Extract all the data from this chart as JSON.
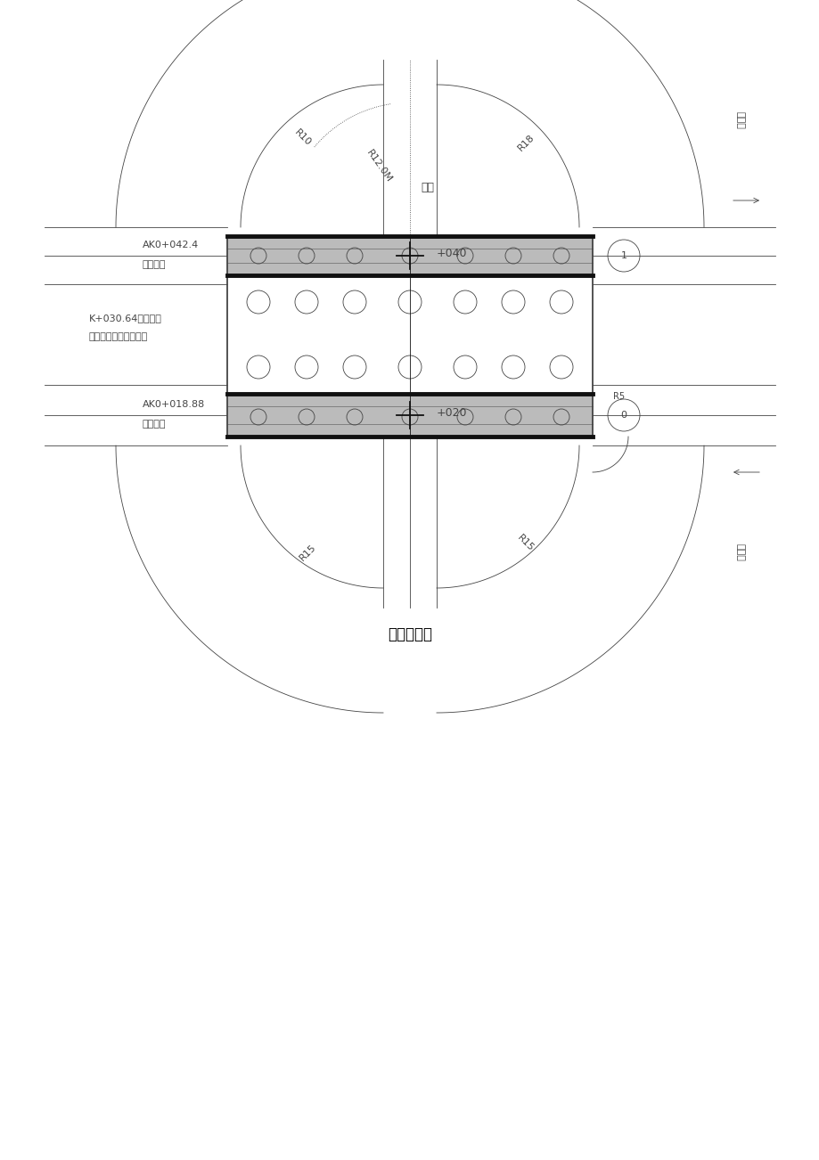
{
  "title": "主桥平面图",
  "bg_color": "#ffffff",
  "line_color": "#444444",
  "fig_width": 9.2,
  "fig_height": 13.02,
  "dpi": 100,
  "labels": {
    "water_cement": "水泥",
    "station_top": "+040",
    "station_bottom": "+020",
    "bridge_end_line1": "AK0+042.4",
    "bridge_end_line2": "桥梁终点",
    "bridge_start_line1": "AK0+018.88",
    "bridge_start_line2": "桥梁起点",
    "span_line1": "K+030.64主入口桥",
    "span_line2": "式预应力混凝土空心板",
    "R12_0M": "R12.0M",
    "R10_tl": "R10",
    "R18_tr": "R18",
    "R15_bl": "R15",
    "R15_br": "R15",
    "R5_br": "R5",
    "road_name_tr": "金城湾",
    "road_name_br": "金城湾",
    "caption": "主桥平面图"
  }
}
